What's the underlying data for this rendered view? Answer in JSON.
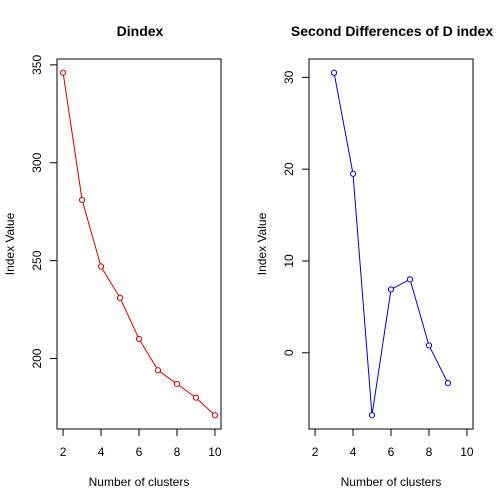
{
  "chart_data": [
    {
      "type": "line",
      "title": "Dindex",
      "xlabel": "Number of clusters",
      "ylabel": "Index Value",
      "color": "#cc0000",
      "x": [
        2,
        3,
        4,
        5,
        6,
        7,
        8,
        9,
        10
      ],
      "y": [
        346,
        281,
        247,
        231,
        210,
        194,
        187,
        180,
        171
      ],
      "xlim": [
        1.68,
        10.32
      ],
      "ylim": [
        164,
        353
      ],
      "xticks": [
        2,
        4,
        6,
        8,
        10
      ],
      "yticks": [
        200,
        250,
        300,
        350
      ]
    },
    {
      "type": "line",
      "title": "Second Differences of D index",
      "xlabel": "Number of clusters",
      "ylabel": "Index Value",
      "color": "#0000cc",
      "x": [
        3,
        4,
        5,
        6,
        7,
        8,
        9
      ],
      "y": [
        30.5,
        19.5,
        -6.8,
        6.9,
        8.0,
        0.8,
        -3.3
      ],
      "xlim": [
        1.68,
        10.32
      ],
      "ylim": [
        -8.3,
        32.0
      ],
      "xticks": [
        2,
        4,
        6,
        8,
        10
      ],
      "yticks": [
        0,
        10,
        20,
        30
      ]
    }
  ]
}
